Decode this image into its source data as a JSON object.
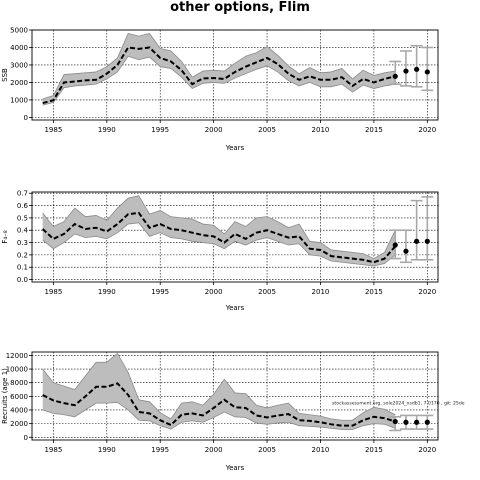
{
  "title": "other options, Flim",
  "chart_data": [
    {
      "type": "line",
      "ylabel": "SSB",
      "xlabel": "Years",
      "xlim": [
        1983,
        2021
      ],
      "ylim": [
        -150,
        5000
      ],
      "xticks": [
        1985,
        1990,
        1995,
        2000,
        2005,
        2010,
        2015,
        2020
      ],
      "yticks": [
        0,
        1000,
        2000,
        3000,
        4000,
        5000
      ],
      "grid": true,
      "x": [
        1984,
        1985,
        1986,
        1987,
        1988,
        1989,
        1990,
        1991,
        1992,
        1993,
        1994,
        1995,
        1996,
        1997,
        1998,
        1999,
        2000,
        2001,
        2002,
        2003,
        2004,
        2005,
        2006,
        2007,
        2008,
        2009,
        2010,
        2011,
        2012,
        2013,
        2014,
        2015,
        2016,
        2017
      ],
      "median": [
        820,
        980,
        2000,
        2050,
        2120,
        2150,
        2500,
        3000,
        4000,
        3920,
        4000,
        3400,
        3200,
        2700,
        1900,
        2230,
        2250,
        2200,
        2600,
        2900,
        3150,
        3400,
        3050,
        2500,
        2150,
        2350,
        2150,
        2150,
        2300,
        1800,
        2200,
        2000,
        2200,
        2350
      ],
      "lower": [
        700,
        850,
        1700,
        1800,
        1850,
        1900,
        2200,
        2600,
        3500,
        3300,
        3450,
        2900,
        2800,
        2300,
        1650,
        1950,
        2000,
        1950,
        2250,
        2500,
        2750,
        2950,
        2600,
        2100,
        1800,
        2000,
        1750,
        1750,
        1900,
        1450,
        1850,
        1650,
        1800,
        1900
      ],
      "upper": [
        1050,
        1250,
        2450,
        2500,
        2550,
        2600,
        2900,
        3400,
        4800,
        4650,
        4800,
        3950,
        3800,
        3200,
        2300,
        2650,
        2700,
        2650,
        3100,
        3500,
        3700,
        4050,
        3550,
        2950,
        2500,
        2850,
        2550,
        2600,
        2800,
        2200,
        2700,
        2400,
        2550,
        2650
      ],
      "projection": {
        "x": [
          2017,
          2018,
          2019,
          2020
        ],
        "y": [
          2350,
          2650,
          2750,
          2600
        ],
        "lower": [
          1900,
          1800,
          1750,
          1550
        ],
        "upper": [
          3200,
          3800,
          4100,
          4000
        ]
      }
    },
    {
      "type": "line",
      "ylabel": "F₄₋₈",
      "xlabel": "Years",
      "xlim": [
        1983,
        2021
      ],
      "ylim": [
        -0.02,
        0.71
      ],
      "xticks": [
        1985,
        1990,
        1995,
        2000,
        2005,
        2010,
        2015,
        2020
      ],
      "yticks": [
        0.0,
        0.1,
        0.2,
        0.3,
        0.4,
        0.5,
        0.6,
        0.7
      ],
      "ytick_labels": [
        "0.0",
        "0.1",
        "0.2",
        "0.3",
        "0.4",
        "0.5",
        "0.6",
        "0.7"
      ],
      "grid": true,
      "x": [
        1984,
        1985,
        1986,
        1987,
        1988,
        1989,
        1990,
        1991,
        1992,
        1993,
        1994,
        1995,
        1996,
        1997,
        1998,
        1999,
        2000,
        2001,
        2002,
        2003,
        2004,
        2005,
        2006,
        2007,
        2008,
        2009,
        2010,
        2011,
        2012,
        2013,
        2014,
        2015,
        2016,
        2017
      ],
      "median": [
        0.41,
        0.33,
        0.37,
        0.45,
        0.41,
        0.42,
        0.39,
        0.45,
        0.53,
        0.54,
        0.42,
        0.45,
        0.41,
        0.4,
        0.38,
        0.36,
        0.35,
        0.3,
        0.37,
        0.33,
        0.38,
        0.4,
        0.37,
        0.34,
        0.35,
        0.25,
        0.24,
        0.19,
        0.18,
        0.17,
        0.16,
        0.14,
        0.17,
        0.27
      ],
      "lower": [
        0.32,
        0.25,
        0.3,
        0.37,
        0.34,
        0.35,
        0.33,
        0.38,
        0.45,
        0.46,
        0.35,
        0.38,
        0.34,
        0.33,
        0.31,
        0.3,
        0.29,
        0.25,
        0.31,
        0.28,
        0.32,
        0.34,
        0.31,
        0.28,
        0.29,
        0.2,
        0.19,
        0.15,
        0.14,
        0.13,
        0.12,
        0.11,
        0.13,
        0.2
      ],
      "upper": [
        0.54,
        0.43,
        0.47,
        0.58,
        0.51,
        0.52,
        0.48,
        0.58,
        0.66,
        0.68,
        0.53,
        0.56,
        0.51,
        0.5,
        0.49,
        0.45,
        0.44,
        0.37,
        0.47,
        0.43,
        0.5,
        0.51,
        0.47,
        0.42,
        0.45,
        0.31,
        0.3,
        0.24,
        0.23,
        0.22,
        0.21,
        0.17,
        0.22,
        0.4
      ],
      "projection": {
        "x": [
          2017,
          2018,
          2019,
          2020
        ],
        "y": [
          0.28,
          0.23,
          0.31,
          0.31
        ],
        "lower": [
          0.17,
          0.14,
          0.16,
          0.16
        ],
        "upper": [
          0.4,
          0.4,
          0.64,
          0.67
        ]
      }
    },
    {
      "type": "line",
      "ylabel": "Recruits (age 1)",
      "xlabel": "Years",
      "xlim": [
        1983,
        2021
      ],
      "ylim": [
        -400,
        12500
      ],
      "xticks": [
        1985,
        1990,
        1995,
        2000,
        2005,
        2010,
        2015,
        2020
      ],
      "yticks": [
        0,
        2000,
        4000,
        6000,
        8000,
        10000,
        12000
      ],
      "grid": true,
      "x": [
        1984,
        1985,
        1986,
        1987,
        1988,
        1989,
        1990,
        1991,
        1992,
        1993,
        1994,
        1995,
        1996,
        1997,
        1998,
        1999,
        2000,
        2001,
        2002,
        2003,
        2004,
        2005,
        2006,
        2007,
        2008,
        2009,
        2010,
        2011,
        2012,
        2013,
        2014,
        2015,
        2016,
        2017
      ],
      "median": [
        6200,
        5400,
        5000,
        4700,
        6000,
        7400,
        7400,
        7900,
        6200,
        3700,
        3500,
        2500,
        1800,
        3300,
        3500,
        3200,
        4300,
        5500,
        4400,
        4300,
        3200,
        2900,
        3200,
        3400,
        2500,
        2400,
        2200,
        1900,
        1700,
        1700,
        2500,
        3000,
        2800,
        2300
      ],
      "lower": [
        4000,
        3500,
        3300,
        3000,
        4000,
        5000,
        5000,
        5100,
        4000,
        2500,
        2400,
        1700,
        1200,
        2200,
        2400,
        2200,
        2900,
        3700,
        3000,
        2900,
        2100,
        1900,
        2100,
        2200,
        1700,
        1600,
        1500,
        1300,
        1150,
        1150,
        1700,
        2000,
        1900,
        1300
      ],
      "upper": [
        10000,
        8000,
        7500,
        7000,
        9000,
        11000,
        11000,
        12300,
        9500,
        5500,
        5200,
        3600,
        2700,
        5000,
        5200,
        4700,
        6300,
        8500,
        6500,
        6400,
        4700,
        4300,
        4700,
        5000,
        3500,
        3300,
        3100,
        2700,
        2500,
        2500,
        3600,
        4400,
        4100,
        3300
      ],
      "projection": {
        "x": [
          2017,
          2018,
          2019,
          2020
        ],
        "y": [
          2300,
          2200,
          2200,
          2200
        ],
        "lower": [
          1000,
          1200,
          1200,
          1200
        ],
        "upper": [
          3000,
          3200,
          3200,
          3200
        ]
      },
      "annotation": "stockassessment.org, sole2024_nsdb1, 7.0176 , git: 25de"
    }
  ]
}
